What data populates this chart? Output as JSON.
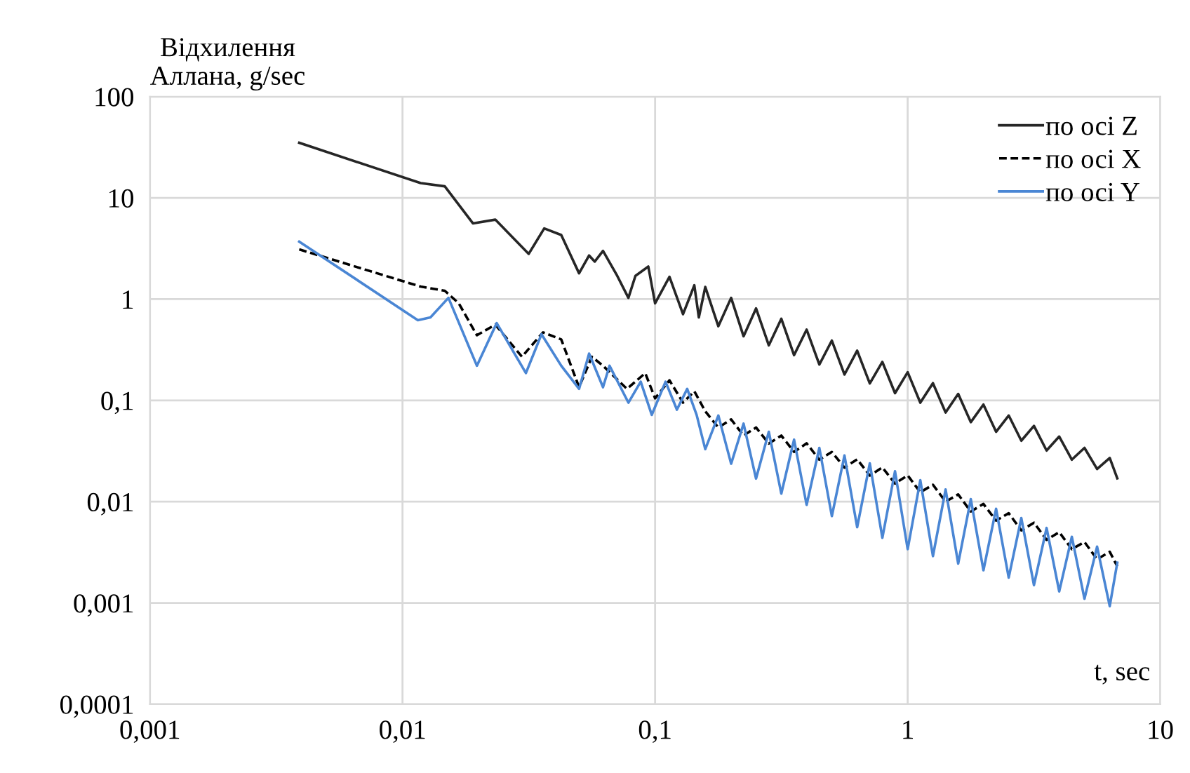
{
  "chart_data": {
    "type": "line",
    "xlabel": "t, sec",
    "ylabel": "Відхилення\nАллана, g/sec",
    "log": "xy",
    "grid": true,
    "legend": "top right",
    "marker": "none",
    "xlim": [
      0.001,
      10
    ],
    "ylim": [
      0.0001,
      100
    ],
    "xticks": [
      {
        "value": 0.001,
        "label": "0,001"
      },
      {
        "value": 0.01,
        "label": "0,01"
      },
      {
        "value": 0.1,
        "label": "0,1"
      },
      1,
      10
    ],
    "yticks": [
      {
        "value": 0.0001,
        "label": "0,0001"
      },
      {
        "value": 0.001,
        "label": "0,001"
      },
      {
        "value": 0.01,
        "label": "0,01"
      },
      {
        "value": 0.1,
        "label": "0,1"
      },
      1,
      10,
      100
    ],
    "series": [
      {
        "name": "по осі Z",
        "color": "#262626",
        "line_style": "solid",
        "x": [
          0.0039,
          0.0118,
          0.0147,
          0.019,
          0.0233,
          0.0316,
          0.0364,
          0.0425,
          0.05,
          0.0548,
          0.0577,
          0.0622,
          0.0708,
          0.0784,
          0.0836,
          0.094,
          0.1,
          0.114,
          0.129,
          0.143,
          0.149,
          0.158,
          0.178,
          0.2,
          0.224,
          0.251,
          0.282,
          0.316,
          0.355,
          0.398,
          0.447,
          0.501,
          0.562,
          0.631,
          0.708,
          0.794,
          0.891,
          1.0,
          1.122,
          1.259,
          1.413,
          1.585,
          1.778,
          1.995,
          2.239,
          2.512,
          2.818,
          3.162,
          3.548,
          3.981,
          4.467,
          5.012,
          5.623,
          6.31,
          6.76
        ],
        "values": [
          35,
          14,
          13,
          5.6,
          6.1,
          2.8,
          5.0,
          4.3,
          1.8,
          2.7,
          2.35,
          3.0,
          1.7,
          1.03,
          1.7,
          2.1,
          0.91,
          1.66,
          0.71,
          1.37,
          0.66,
          1.32,
          0.54,
          1.03,
          0.43,
          0.81,
          0.35,
          0.64,
          0.28,
          0.5,
          0.226,
          0.39,
          0.18,
          0.31,
          0.147,
          0.24,
          0.118,
          0.19,
          0.095,
          0.148,
          0.076,
          0.116,
          0.061,
          0.091,
          0.049,
          0.071,
          0.04,
          0.056,
          0.032,
          0.044,
          0.026,
          0.034,
          0.021,
          0.027,
          0.017
        ]
      },
      {
        "name": "по осі X",
        "color": "#000000",
        "line_style": "dashed",
        "x": [
          0.0039,
          0.0118,
          0.0147,
          0.0167,
          0.0197,
          0.0233,
          0.0297,
          0.036,
          0.0425,
          0.05,
          0.0562,
          0.0622,
          0.0774,
          0.0914,
          0.1,
          0.114,
          0.129,
          0.143,
          0.158,
          0.178,
          0.2,
          0.224,
          0.251,
          0.282,
          0.316,
          0.355,
          0.398,
          0.447,
          0.501,
          0.562,
          0.631,
          0.708,
          0.794,
          0.891,
          1.0,
          1.122,
          1.259,
          1.413,
          1.585,
          1.778,
          1.995,
          2.239,
          2.512,
          2.818,
          3.162,
          3.548,
          3.981,
          4.467,
          5.012,
          5.623,
          6.31,
          6.76
        ],
        "values": [
          3.1,
          1.33,
          1.21,
          0.91,
          0.44,
          0.56,
          0.27,
          0.47,
          0.4,
          0.135,
          0.27,
          0.22,
          0.13,
          0.186,
          0.105,
          0.158,
          0.095,
          0.123,
          0.078,
          0.054,
          0.065,
          0.045,
          0.054,
          0.0375,
          0.045,
          0.031,
          0.0377,
          0.026,
          0.031,
          0.0217,
          0.0262,
          0.0181,
          0.0218,
          0.0151,
          0.0182,
          0.0124,
          0.0147,
          0.01,
          0.0118,
          0.008,
          0.0095,
          0.0065,
          0.0077,
          0.0052,
          0.0062,
          0.0042,
          0.005,
          0.0034,
          0.004,
          0.0027,
          0.0032,
          0.0023
        ]
      },
      {
        "name": "по осі Y",
        "color": "#4a86d4",
        "line_style": "solid",
        "x": [
          0.0039,
          0.0115,
          0.0129,
          0.0152,
          0.0197,
          0.0236,
          0.0308,
          0.0355,
          0.0425,
          0.05,
          0.0548,
          0.0622,
          0.066,
          0.0784,
          0.0877,
          0.097,
          0.11,
          0.122,
          0.134,
          0.146,
          0.158,
          0.178,
          0.2,
          0.224,
          0.251,
          0.282,
          0.316,
          0.355,
          0.398,
          0.447,
          0.501,
          0.562,
          0.631,
          0.708,
          0.794,
          0.891,
          1.0,
          1.122,
          1.259,
          1.413,
          1.585,
          1.778,
          1.995,
          2.239,
          2.512,
          2.818,
          3.162,
          3.548,
          3.981,
          4.467,
          5.012,
          5.623,
          6.31,
          6.76
        ],
        "values": [
          3.7,
          0.62,
          0.66,
          1.03,
          0.22,
          0.58,
          0.186,
          0.45,
          0.22,
          0.13,
          0.29,
          0.135,
          0.22,
          0.095,
          0.153,
          0.072,
          0.153,
          0.081,
          0.13,
          0.072,
          0.033,
          0.071,
          0.0237,
          0.059,
          0.0169,
          0.049,
          0.012,
          0.041,
          0.0093,
          0.034,
          0.0072,
          0.0286,
          0.0056,
          0.0239,
          0.0044,
          0.02,
          0.0034,
          0.0163,
          0.0029,
          0.0132,
          0.00245,
          0.0106,
          0.0021,
          0.0085,
          0.00178,
          0.0069,
          0.0015,
          0.0055,
          0.0013,
          0.0045,
          0.0011,
          0.0036,
          0.00093,
          0.0025
        ]
      }
    ]
  }
}
